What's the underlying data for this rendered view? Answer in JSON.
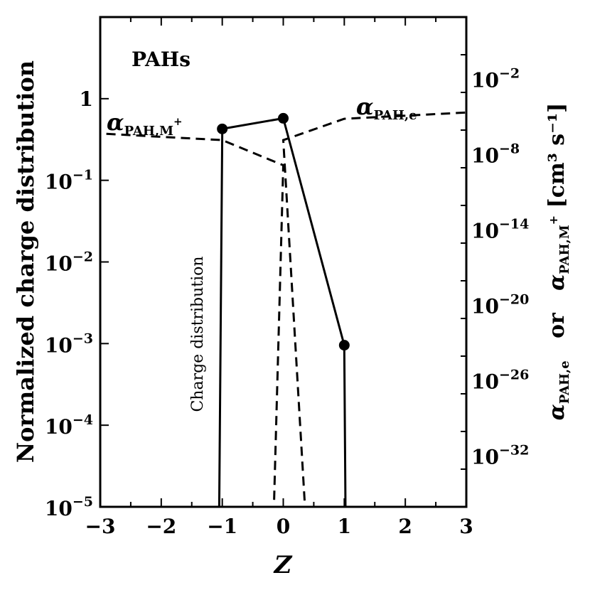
{
  "chart_data": {
    "type": "line",
    "title": "",
    "panel_label": "PAHs",
    "xlabel": "Z",
    "ylabel_left": "Normalized charge distribution",
    "ylabel_right": {
      "prefix": "α",
      "sub1": "PAH,e",
      "or": "or",
      "sub2": "PAH,M",
      "sup2": "+",
      "units": "[cm³ s⁻¹]"
    },
    "xlim": [
      -3,
      3
    ],
    "ylim_left_log10": [
      -5,
      1
    ],
    "ylim_right_log10": [
      -36,
      3
    ],
    "x_ticks": [
      -3,
      -2,
      -1,
      0,
      1,
      2,
      3
    ],
    "x_tick_labels": [
      "−3",
      "−2",
      "−1",
      "0",
      "1",
      "2",
      "3"
    ],
    "y_left_ticks": [
      {
        "exp": 0,
        "label": "1"
      },
      {
        "exp": -1,
        "base": "10",
        "sup": "−1"
      },
      {
        "exp": -2,
        "base": "10",
        "sup": "−2"
      },
      {
        "exp": -3,
        "base": "10",
        "sup": "−3"
      },
      {
        "exp": -4,
        "base": "10",
        "sup": "−4"
      },
      {
        "exp": -5,
        "base": "10",
        "sup": "−5"
      }
    ],
    "y_right_ticks": [
      {
        "exp": -2,
        "base": "10",
        "sup": "−2"
      },
      {
        "exp": -8,
        "base": "10",
        "sup": "−8"
      },
      {
        "exp": -14,
        "base": "10",
        "sup": "−14"
      },
      {
        "exp": -20,
        "base": "10",
        "sup": "−20"
      },
      {
        "exp": -26,
        "base": "10",
        "sup": "−26"
      },
      {
        "exp": -32,
        "base": "10",
        "sup": "−32"
      }
    ],
    "series": [
      {
        "name": "Charge distribution",
        "axis": "left",
        "style": "solid",
        "markers": true,
        "points": [
          [
            -1.05,
            -5
          ],
          [
            -1,
            -0.37
          ],
          [
            0,
            -0.24
          ],
          [
            1,
            -3.02
          ],
          [
            1.02,
            -5
          ]
        ],
        "marker_points": [
          [
            -1,
            -0.37
          ],
          [
            0,
            -0.24
          ],
          [
            1,
            -3.02
          ]
        ]
      },
      {
        "name": "α_PAH,M+",
        "axis": "right",
        "style": "dashed",
        "points": [
          [
            -2.9,
            -6.3
          ],
          [
            -1,
            -6.8
          ],
          [
            0,
            -8.8
          ],
          [
            -0.15,
            -35.5
          ]
        ]
      },
      {
        "name": "α_PAH,e",
        "axis": "right",
        "style": "dashed",
        "points": [
          [
            0.35,
            -35.5
          ],
          [
            0,
            -6.8
          ],
          [
            1,
            -5.1
          ],
          [
            3,
            -4.6
          ]
        ]
      }
    ],
    "annotations": {
      "charge_label": "Charge distribution",
      "alpha_m": {
        "prefix": "α",
        "sub": "PAH,M",
        "sup": "+"
      },
      "alpha_e": {
        "prefix": "α",
        "sub": "PAH,e"
      }
    },
    "grid": false,
    "legend": "none"
  }
}
